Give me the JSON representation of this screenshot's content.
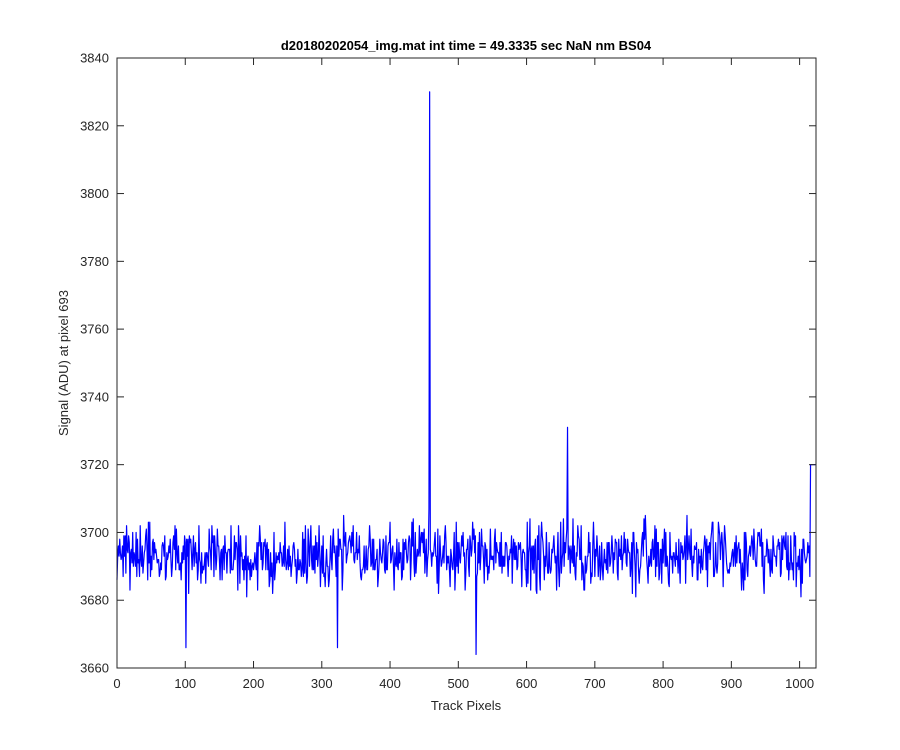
{
  "chart_data": {
    "type": "line",
    "title": "d20180202054_img.mat int time = 49.3335 sec  NaN nm BS04",
    "xlabel": "Track Pixels",
    "ylabel": "Signal (ADU) at pixel 693",
    "xlim": [
      0,
      1024
    ],
    "ylim": [
      3660,
      3840
    ],
    "xticks": [
      0,
      100,
      200,
      300,
      400,
      500,
      600,
      700,
      800,
      900,
      1000
    ],
    "yticks": [
      3660,
      3680,
      3700,
      3720,
      3740,
      3760,
      3780,
      3800,
      3820,
      3840
    ],
    "grid": false,
    "line_color": "#0000ff",
    "noise_model": {
      "pixels": 1024,
      "center": 3693,
      "amplitude": 14,
      "seed": 20180202
    },
    "notable_points": [
      {
        "x": 101,
        "y": 3666
      },
      {
        "x": 323,
        "y": 3666
      },
      {
        "x": 457,
        "y": 3707
      },
      {
        "x": 458,
        "y": 3830
      },
      {
        "x": 459,
        "y": 3695
      },
      {
        "x": 526,
        "y": 3664
      },
      {
        "x": 660,
        "y": 3731
      },
      {
        "x": 1016,
        "y": 3720
      },
      {
        "x": 1017,
        "y": 3720
      },
      {
        "x": 1018,
        "y": 3720
      },
      {
        "x": 1019,
        "y": 3720
      },
      {
        "x": 1020,
        "y": 3720
      },
      {
        "x": 1021,
        "y": 3720
      },
      {
        "x": 1022,
        "y": 3720
      },
      {
        "x": 1023,
        "y": 3720
      }
    ]
  }
}
